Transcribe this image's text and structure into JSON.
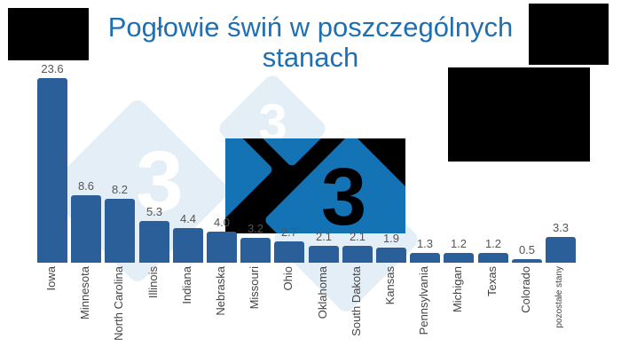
{
  "chart_data": {
    "type": "bar",
    "title": "Pogłowie świń w poszczególnych stanach",
    "xlabel": "",
    "ylabel": "",
    "categories": [
      "Iowa",
      "Minnesota",
      "North Carolina",
      "Illinois",
      "Indiana",
      "Nebraska",
      "Missouri",
      "Ohio",
      "Oklahoma",
      "South Dakota",
      "Kansas",
      "Pennsylvania",
      "Michigan",
      "Texas",
      "Colorado",
      "pozostałe stany"
    ],
    "values": [
      23.6,
      8.6,
      8.2,
      5.3,
      4.4,
      4.0,
      3.2,
      2.7,
      2.1,
      2.1,
      1.9,
      1.3,
      1.2,
      1.2,
      0.5,
      3.3
    ],
    "value_labels": [
      "23.6",
      "8.6",
      "8.2",
      "5.3",
      "4.4",
      "4.0",
      "3.2",
      "2.7",
      "2.1",
      "2.1",
      "1.9",
      "1.3",
      "1.2",
      "1.2",
      "0.5",
      "3.3"
    ],
    "ylim": [
      0,
      23.6
    ],
    "grid": false,
    "legend": "none",
    "bar_color": "#2a5f9a"
  },
  "title": {
    "line1": "Pogłowie świń w poszczególnych",
    "line2": "stanach",
    "color": "#1f6fb3"
  },
  "watermark": {
    "glyph": "3",
    "logo_glyph": "3"
  }
}
